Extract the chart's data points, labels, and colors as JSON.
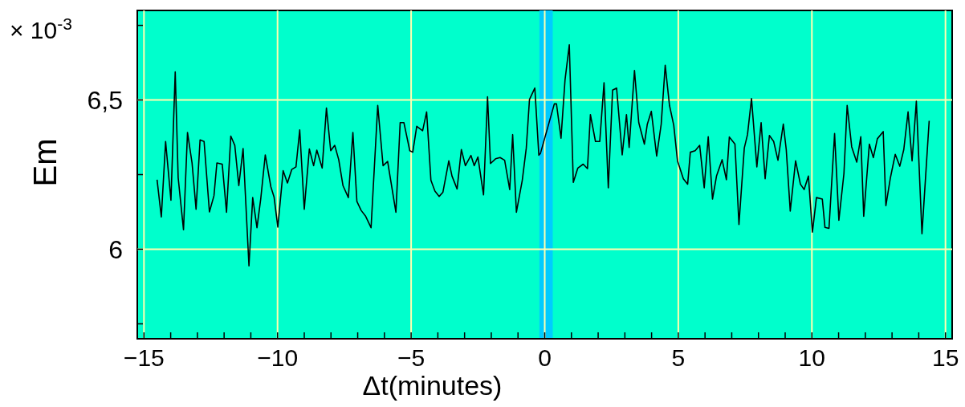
{
  "chart_data": {
    "type": "line",
    "xlabel": "Δt(minutes)",
    "ylabel": "Em",
    "annotations": [
      "× 10$^{-3}$"
    ],
    "xlim": [
      -15.25,
      15.25
    ],
    "ylim": [
      5.7,
      6.8
    ],
    "xticks": [
      -15,
      {
        "value": -14,
        "label": null
      },
      {
        "value": -13,
        "label": null
      },
      {
        "value": -12,
        "label": null
      },
      {
        "value": -11,
        "label": null
      },
      -10,
      {
        "value": -9,
        "label": null
      },
      {
        "value": -8,
        "label": null
      },
      {
        "value": -7,
        "label": null
      },
      {
        "value": -6,
        "label": null
      },
      -5,
      {
        "value": -4,
        "label": null
      },
      {
        "value": -3,
        "label": null
      },
      {
        "value": -2,
        "label": null
      },
      {
        "value": -1,
        "label": null
      },
      0,
      {
        "value": 1,
        "label": null
      },
      {
        "value": 2,
        "label": null
      },
      {
        "value": 3,
        "label": null
      },
      {
        "value": 4,
        "label": null
      },
      5,
      {
        "value": 6,
        "label": null
      },
      {
        "value": 7,
        "label": null
      },
      {
        "value": 8,
        "label": null
      },
      {
        "value": 9,
        "label": null
      },
      10,
      {
        "value": 11,
        "label": null
      },
      {
        "value": 12,
        "label": null
      },
      {
        "value": 13,
        "label": null
      },
      {
        "value": 14,
        "label": null
      },
      15
    ],
    "yticks": [
      {
        "value": 5.75,
        "label": null
      },
      6,
      {
        "value": 6.25,
        "label": null
      },
      {
        "value": 6.5,
        "label": "6,5"
      },
      {
        "value": 6.75,
        "label": null
      }
    ],
    "grid": true,
    "marker": "none",
    "line_style": "solid",
    "bands": [
      {
        "axis": "x",
        "from": -0.2,
        "to": 0.3,
        "color": "#00ccff"
      }
    ],
    "series": [
      {
        "color": "#000000",
        "x": [
          -14.51,
          -14.35,
          -14.19,
          -13.99,
          -13.83,
          -13.72,
          -13.52,
          -13.37,
          -13.2,
          -13.05,
          -12.9,
          -12.75,
          -12.55,
          -12.38,
          -12.27,
          -12.07,
          -11.91,
          -11.75,
          -11.6,
          -11.45,
          -11.29,
          -11.07,
          -10.93,
          -10.77,
          -10.63,
          -10.46,
          -10.25,
          -10.13,
          -9.99,
          -9.79,
          -9.63,
          -9.47,
          -9.31,
          -9.17,
          -9,
          -8.81,
          -8.65,
          -8.53,
          -8.33,
          -8.17,
          -8.01,
          -7.86,
          -7.71,
          -7.55,
          -7.35,
          -7.18,
          -7.03,
          -6.87,
          -6.7,
          -6.5,
          -6.25,
          -6.05,
          -5.88,
          -5.57,
          -5.41,
          -5.27,
          -5.05,
          -4.94,
          -4.79,
          -4.57,
          -4.42,
          -4.26,
          -4.11,
          -3.95,
          -3.81,
          -3.59,
          -3.47,
          -3.28,
          -3.12,
          -2.97,
          -2.76,
          -2.64,
          -2.5,
          -2.29,
          -2.14,
          -2.03,
          -1.84,
          -1.67,
          -1.5,
          -1.31,
          -1.2,
          -1.06,
          -0.84,
          -0.69,
          -0.57,
          -0.37,
          -0.22,
          -0.16,
          0.36,
          0.44,
          0.61,
          0.76,
          0.92,
          1.07,
          1.24,
          1.44,
          1.6,
          1.71,
          1.9,
          2.06,
          2.22,
          2.38,
          2.54,
          2.69,
          2.9,
          3.06,
          3.16,
          3.36,
          3.52,
          3.73,
          3.84,
          3.99,
          4.19,
          4.36,
          4.51,
          4.67,
          4.83,
          4.97,
          5.19,
          5.35,
          5.45,
          5.63,
          5.8,
          5.97,
          6.12,
          6.28,
          6.43,
          6.64,
          6.8,
          6.91,
          7.12,
          7.27,
          7.47,
          7.59,
          7.74,
          7.94,
          8.1,
          8.25,
          8.41,
          8.57,
          8.73,
          8.93,
          9.04,
          9.19,
          9.39,
          9.57,
          9.71,
          9.87,
          10.02,
          10.17,
          10.39,
          10.49,
          10.64,
          10.85,
          11.01,
          11.2,
          11.32,
          11.49,
          11.68,
          11.83,
          11.94,
          12.15,
          12.3,
          12.45,
          12.67,
          12.77,
          12.94,
          13.12,
          13.29,
          13.44,
          13.6,
          13.75,
          13.91,
          14.12,
          14.39
        ],
        "values": [
          6.233,
          6.108,
          6.361,
          6.164,
          6.594,
          6.24,
          6.065,
          6.391,
          6.289,
          6.134,
          6.366,
          6.361,
          6.125,
          6.179,
          6.289,
          6.285,
          6.124,
          6.379,
          6.348,
          6.213,
          6.337,
          5.944,
          6.173,
          6.072,
          6.168,
          6.316,
          6.209,
          6.175,
          6.074,
          6.263,
          6.222,
          6.267,
          6.276,
          6.4,
          6.134,
          6.336,
          6.28,
          6.332,
          6.272,
          6.473,
          6.33,
          6.348,
          6.3,
          6.213,
          6.173,
          6.391,
          6.16,
          6.13,
          6.11,
          6.072,
          6.482,
          6.28,
          6.294,
          6.124,
          6.424,
          6.424,
          6.33,
          6.325,
          6.412,
          6.397,
          6.46,
          6.231,
          6.195,
          6.177,
          6.191,
          6.296,
          6.245,
          6.202,
          6.334,
          6.28,
          6.314,
          6.28,
          6.309,
          6.182,
          6.511,
          6.287,
          6.303,
          6.307,
          6.298,
          6.2,
          6.384,
          6.124,
          6.231,
          6.339,
          6.502,
          6.54,
          6.315,
          6.321,
          6.487,
          6.487,
          6.372,
          6.567,
          6.685,
          6.224,
          6.272,
          6.285,
          6.27,
          6.451,
          6.361,
          6.361,
          6.558,
          6.206,
          6.533,
          6.54,
          6.316,
          6.451,
          6.341,
          6.599,
          6.424,
          6.352,
          6.419,
          6.462,
          6.312,
          6.419,
          6.616,
          6.482,
          6.415,
          6.296,
          6.236,
          6.218,
          6.325,
          6.33,
          6.348,
          6.206,
          6.377,
          6.168,
          6.245,
          6.3,
          6.233,
          6.376,
          6.352,
          6.083,
          6.339,
          6.384,
          6.505,
          6.276,
          6.424,
          6.236,
          6.381,
          6.361,
          6.298,
          6.419,
          6.334,
          6.128,
          6.296,
          6.218,
          6.2,
          6.245,
          6.057,
          6.173,
          6.168,
          6.073,
          6.07,
          6.388,
          6.097,
          6.254,
          6.482,
          6.343,
          6.292,
          6.377,
          6.11,
          6.352,
          6.307,
          6.37,
          6.394,
          6.146,
          6.24,
          6.318,
          6.278,
          6.334,
          6.46,
          6.296,
          6.496,
          6.052,
          6.43
        ]
      }
    ]
  }
}
